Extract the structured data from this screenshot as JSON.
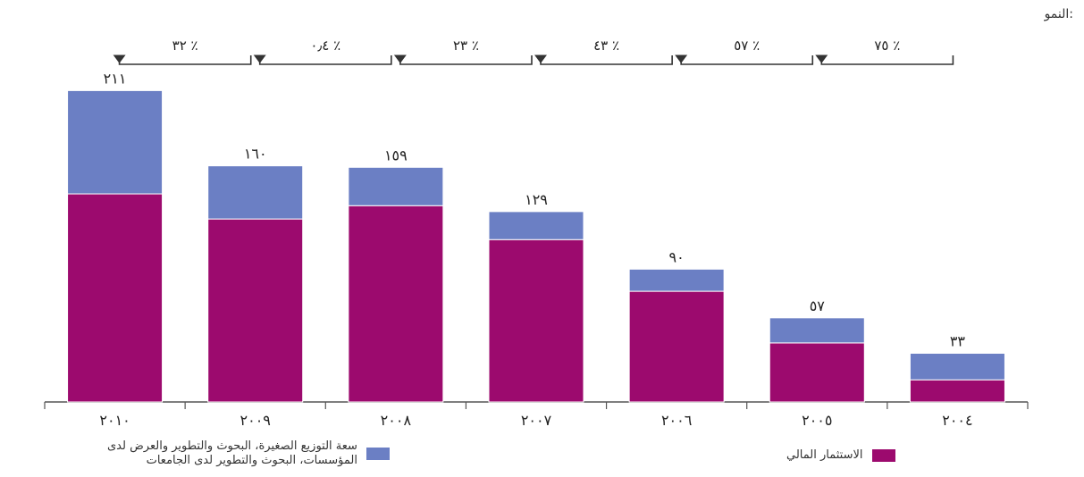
{
  "growth_label": "النمو:",
  "chart_data": {
    "type": "bar",
    "stacked": true,
    "categories": [
      "٢٠١٠",
      "٢٠٠٩",
      "٢٠٠٨",
      "٢٠٠٧",
      "٢٠٠٦",
      "٢٠٠٥",
      "٢٠٠٤"
    ],
    "totals": [
      "٢١١",
      "١٦٠",
      "١٥٩",
      "١٢٩",
      "٩٠",
      "٥٧",
      "٣٣"
    ],
    "series": [
      {
        "name": "الاستثمار المالي",
        "color": "#9c0a6e",
        "values": [
          141,
          124,
          133,
          110,
          75,
          40,
          15
        ]
      },
      {
        "name": "سعة التوزيع الصغيرة، البحوث والتطوير والعرض لدى المؤسسات، البحوث والتطوير لدى الجامعات",
        "color": "#6b7fc4",
        "values": [
          70,
          36,
          26,
          19,
          15,
          17,
          18
        ]
      }
    ],
    "growth": [
      "٣٢ ٪",
      "٠٫٤ ٪",
      "٢٣ ٪",
      "٤٣ ٪",
      "٥٧ ٪",
      "٧٥ ٪"
    ],
    "ylim": [
      0,
      230
    ],
    "grid": false,
    "legend_position": "bottom"
  },
  "legend": {
    "item1": "الاستثمار المالي",
    "item2_line1": "سعة التوزيع الصغيرة، البحوث والتطوير والعرض لدى",
    "item2_line2": "المؤسسات، البحوث والتطوير لدى الجامعات"
  }
}
